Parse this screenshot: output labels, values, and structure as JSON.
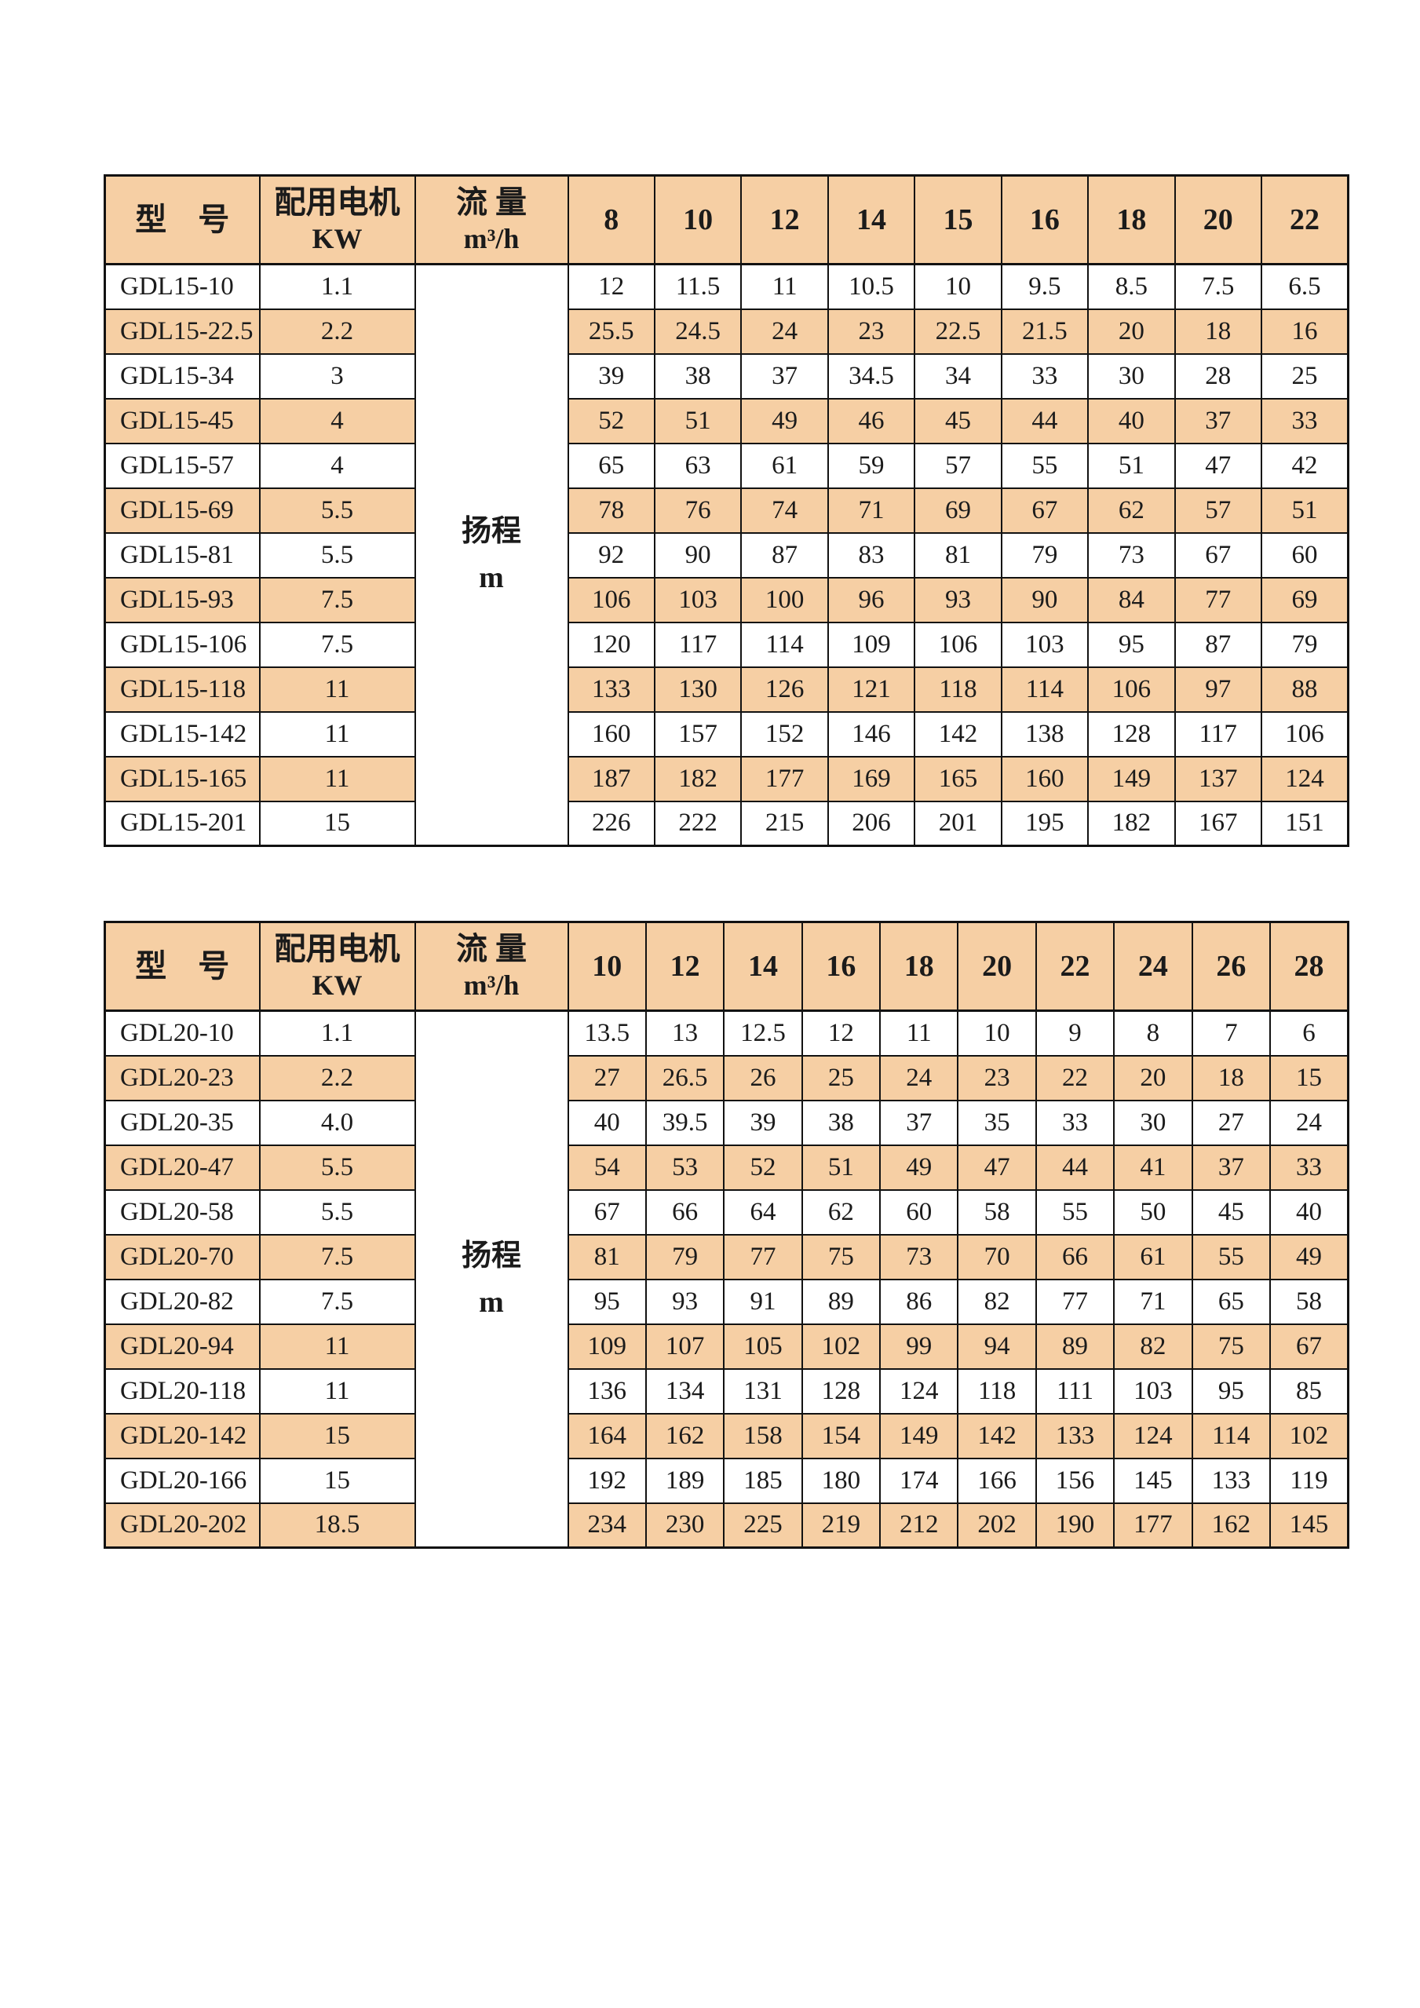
{
  "colors": {
    "stripe": "#f6cfa4",
    "border": "#121212",
    "text": "#1b1b1b",
    "page_background": "#ffffff"
  },
  "tables": [
    {
      "series": "GDL15",
      "header": {
        "model": "型　号",
        "motor_line1": "配用电机",
        "motor_line2": "KW",
        "flow_line1": "流 量",
        "flow_line2": "m³/h",
        "flow_columns": [
          "8",
          "10",
          "12",
          "14",
          "15",
          "16",
          "18",
          "20",
          "22"
        ]
      },
      "center_label": {
        "line1": "扬程",
        "line2": "m"
      },
      "rows": [
        {
          "model": "GDL15-10",
          "kw": "1.1",
          "heads": [
            "12",
            "11.5",
            "11",
            "10.5",
            "10",
            "9.5",
            "8.5",
            "7.5",
            "6.5"
          ]
        },
        {
          "model": "GDL15-22.5",
          "kw": "2.2",
          "heads": [
            "25.5",
            "24.5",
            "24",
            "23",
            "22.5",
            "21.5",
            "20",
            "18",
            "16"
          ]
        },
        {
          "model": "GDL15-34",
          "kw": "3",
          "heads": [
            "39",
            "38",
            "37",
            "34.5",
            "34",
            "33",
            "30",
            "28",
            "25"
          ]
        },
        {
          "model": "GDL15-45",
          "kw": "4",
          "heads": [
            "52",
            "51",
            "49",
            "46",
            "45",
            "44",
            "40",
            "37",
            "33"
          ]
        },
        {
          "model": "GDL15-57",
          "kw": "4",
          "heads": [
            "65",
            "63",
            "61",
            "59",
            "57",
            "55",
            "51",
            "47",
            "42"
          ]
        },
        {
          "model": "GDL15-69",
          "kw": "5.5",
          "heads": [
            "78",
            "76",
            "74",
            "71",
            "69",
            "67",
            "62",
            "57",
            "51"
          ]
        },
        {
          "model": "GDL15-81",
          "kw": "5.5",
          "heads": [
            "92",
            "90",
            "87",
            "83",
            "81",
            "79",
            "73",
            "67",
            "60"
          ]
        },
        {
          "model": "GDL15-93",
          "kw": "7.5",
          "heads": [
            "106",
            "103",
            "100",
            "96",
            "93",
            "90",
            "84",
            "77",
            "69"
          ]
        },
        {
          "model": "GDL15-106",
          "kw": "7.5",
          "heads": [
            "120",
            "117",
            "114",
            "109",
            "106",
            "103",
            "95",
            "87",
            "79"
          ]
        },
        {
          "model": "GDL15-118",
          "kw": "11",
          "heads": [
            "133",
            "130",
            "126",
            "121",
            "118",
            "114",
            "106",
            "97",
            "88"
          ]
        },
        {
          "model": "GDL15-142",
          "kw": "11",
          "heads": [
            "160",
            "157",
            "152",
            "146",
            "142",
            "138",
            "128",
            "117",
            "106"
          ]
        },
        {
          "model": "GDL15-165",
          "kw": "11",
          "heads": [
            "187",
            "182",
            "177",
            "169",
            "165",
            "160",
            "149",
            "137",
            "124"
          ]
        },
        {
          "model": "GDL15-201",
          "kw": "15",
          "heads": [
            "226",
            "222",
            "215",
            "206",
            "201",
            "195",
            "182",
            "167",
            "151"
          ]
        }
      ]
    },
    {
      "series": "GDL20",
      "header": {
        "model": "型　号",
        "motor_line1": "配用电机",
        "motor_line2": "KW",
        "flow_line1": "流 量",
        "flow_line2": "m³/h",
        "flow_columns": [
          "10",
          "12",
          "14",
          "16",
          "18",
          "20",
          "22",
          "24",
          "26",
          "28"
        ]
      },
      "center_label": {
        "line1": "扬程",
        "line2": "m"
      },
      "rows": [
        {
          "model": "GDL20-10",
          "kw": "1.1",
          "heads": [
            "13.5",
            "13",
            "12.5",
            "12",
            "11",
            "10",
            "9",
            "8",
            "7",
            "6"
          ]
        },
        {
          "model": "GDL20-23",
          "kw": "2.2",
          "heads": [
            "27",
            "26.5",
            "26",
            "25",
            "24",
            "23",
            "22",
            "20",
            "18",
            "15"
          ]
        },
        {
          "model": "GDL20-35",
          "kw": "4.0",
          "heads": [
            "40",
            "39.5",
            "39",
            "38",
            "37",
            "35",
            "33",
            "30",
            "27",
            "24"
          ]
        },
        {
          "model": "GDL20-47",
          "kw": "5.5",
          "heads": [
            "54",
            "53",
            "52",
            "51",
            "49",
            "47",
            "44",
            "41",
            "37",
            "33"
          ]
        },
        {
          "model": "GDL20-58",
          "kw": "5.5",
          "heads": [
            "67",
            "66",
            "64",
            "62",
            "60",
            "58",
            "55",
            "50",
            "45",
            "40"
          ]
        },
        {
          "model": "GDL20-70",
          "kw": "7.5",
          "heads": [
            "81",
            "79",
            "77",
            "75",
            "73",
            "70",
            "66",
            "61",
            "55",
            "49"
          ]
        },
        {
          "model": "GDL20-82",
          "kw": "7.5",
          "heads": [
            "95",
            "93",
            "91",
            "89",
            "86",
            "82",
            "77",
            "71",
            "65",
            "58"
          ]
        },
        {
          "model": "GDL20-94",
          "kw": "11",
          "heads": [
            "109",
            "107",
            "105",
            "102",
            "99",
            "94",
            "89",
            "82",
            "75",
            "67"
          ]
        },
        {
          "model": "GDL20-118",
          "kw": "11",
          "heads": [
            "136",
            "134",
            "131",
            "128",
            "124",
            "118",
            "111",
            "103",
            "95",
            "85"
          ]
        },
        {
          "model": "GDL20-142",
          "kw": "15",
          "heads": [
            "164",
            "162",
            "158",
            "154",
            "149",
            "142",
            "133",
            "124",
            "114",
            "102"
          ]
        },
        {
          "model": "GDL20-166",
          "kw": "15",
          "heads": [
            "192",
            "189",
            "185",
            "180",
            "174",
            "166",
            "156",
            "145",
            "133",
            "119"
          ]
        },
        {
          "model": "GDL20-202",
          "kw": "18.5",
          "heads": [
            "234",
            "230",
            "225",
            "219",
            "212",
            "202",
            "190",
            "177",
            "162",
            "145"
          ]
        }
      ]
    }
  ]
}
